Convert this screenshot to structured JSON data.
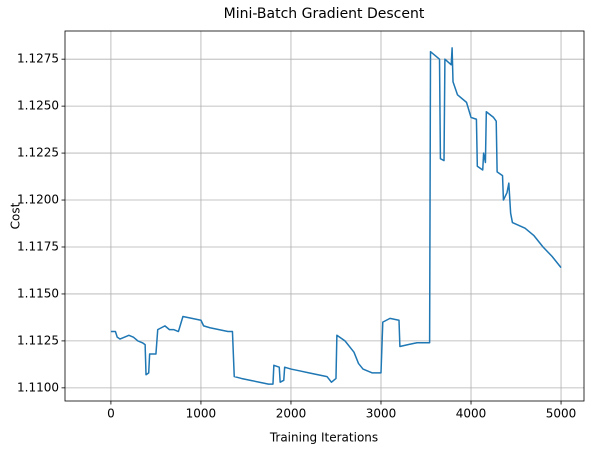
{
  "chart_data": {
    "type": "line",
    "title": "Mini-Batch Gradient Descent",
    "xlabel": "Training Iterations",
    "ylabel": "Cost",
    "grid": true,
    "xlim": [
      -510,
      5255
    ],
    "ylim": [
      1.1093,
      1.129
    ],
    "xticks": [
      0,
      1000,
      2000,
      3000,
      4000,
      5000
    ],
    "yticks": [
      {
        "value": 1.11,
        "label": "1.1100"
      },
      {
        "value": 1.1125,
        "label": "1.1125"
      },
      {
        "value": 1.115,
        "label": "1.1150"
      },
      {
        "value": 1.1175,
        "label": "1.1175"
      },
      {
        "value": 1.12,
        "label": "1.1200"
      },
      {
        "value": 1.1225,
        "label": "1.1225"
      },
      {
        "value": 1.125,
        "label": "1.1250"
      },
      {
        "value": 1.1275,
        "label": "1.1275"
      }
    ],
    "x": [
      0,
      50,
      70,
      100,
      150,
      200,
      250,
      300,
      350,
      380,
      390,
      420,
      430,
      500,
      520,
      600,
      650,
      700,
      750,
      800,
      900,
      1000,
      1030,
      1100,
      1200,
      1300,
      1350,
      1370,
      1450,
      1550,
      1650,
      1750,
      1800,
      1810,
      1870,
      1880,
      1920,
      1930,
      2000,
      2100,
      2200,
      2300,
      2400,
      2450,
      2500,
      2510,
      2600,
      2700,
      2750,
      2800,
      2900,
      3000,
      3020,
      3100,
      3200,
      3210,
      3300,
      3400,
      3500,
      3540,
      3550,
      3650,
      3660,
      3700,
      3710,
      3780,
      3790,
      3800,
      3850,
      3950,
      4000,
      4060,
      4070,
      4130,
      4140,
      4160,
      4170,
      4250,
      4280,
      4290,
      4350,
      4360,
      4400,
      4420,
      4440,
      4460,
      4600,
      4700,
      4800,
      4900,
      5000
    ],
    "series": [
      {
        "name": "Cost",
        "color": "#1f77b4",
        "values": [
          1.113,
          1.113,
          1.1127,
          1.1126,
          1.1127,
          1.1128,
          1.1127,
          1.1125,
          1.1124,
          1.1123,
          1.1107,
          1.1108,
          1.1118,
          1.1118,
          1.1131,
          1.1133,
          1.1131,
          1.1131,
          1.113,
          1.1138,
          1.1137,
          1.1136,
          1.1133,
          1.1132,
          1.1131,
          1.113,
          1.113,
          1.1106,
          1.1105,
          1.1104,
          1.1103,
          1.1102,
          1.1102,
          1.1112,
          1.1111,
          1.1103,
          1.1104,
          1.1111,
          1.111,
          1.1109,
          1.1108,
          1.1107,
          1.1106,
          1.1103,
          1.1105,
          1.1128,
          1.1125,
          1.1119,
          1.1113,
          1.111,
          1.1108,
          1.1108,
          1.1135,
          1.1137,
          1.1136,
          1.1122,
          1.1123,
          1.1124,
          1.1124,
          1.1124,
          1.1279,
          1.1275,
          1.1222,
          1.1221,
          1.1275,
          1.1272,
          1.1281,
          1.1263,
          1.1256,
          1.1252,
          1.1244,
          1.1243,
          1.1218,
          1.1216,
          1.1225,
          1.122,
          1.1247,
          1.1244,
          1.1242,
          1.1215,
          1.1213,
          1.12,
          1.1204,
          1.1209,
          1.1193,
          1.1188,
          1.1185,
          1.1181,
          1.1175,
          1.117,
          1.1164
        ]
      }
    ]
  }
}
